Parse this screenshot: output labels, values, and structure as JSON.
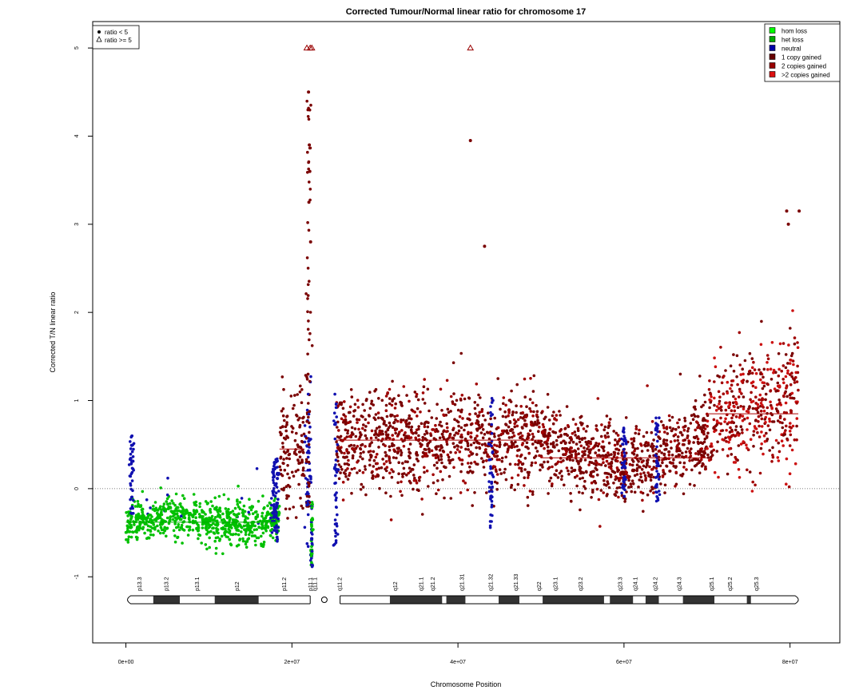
{
  "chart_data": {
    "type": "scatter",
    "title": "Corrected Tumour/Normal linear ratio for chromosome  17",
    "xlabel": "Chromosome Position",
    "ylabel": "Corrected T/N linear ratio",
    "xlim": [
      -4000000,
      86000000
    ],
    "ylim": [
      -1.75,
      5.3
    ],
    "x_ticks": [
      0,
      20000000,
      40000000,
      60000000,
      80000000
    ],
    "x_tick_labels": [
      "0e+00",
      "2e+07",
      "4e+07",
      "6e+07",
      "8e+07"
    ],
    "y_ticks": [
      -1,
      0,
      1,
      2,
      3,
      4,
      5
    ],
    "y_tick_labels": [
      "-1",
      "0",
      "1",
      "2",
      "3",
      "4",
      "5"
    ],
    "reference_line_y": 0,
    "legend_shape": {
      "position": "top-left",
      "entries": [
        {
          "symbol": "dot",
          "label": "ratio < 5"
        },
        {
          "symbol": "triangle",
          "label": "ratio >= 5"
        }
      ]
    },
    "legend_state": {
      "position": "top-right",
      "entries": [
        {
          "label": "hom loss",
          "color": "#00ff00"
        },
        {
          "label": "het loss",
          "color": "#00aa00"
        },
        {
          "label": "neutral",
          "color": "#0000aa"
        },
        {
          "label": "1 copy gained",
          "color": "#660000"
        },
        {
          "label": "2 copies gained",
          "color": "#990000"
        },
        {
          "label": ">2 copies gained",
          "color": "#dd1111"
        }
      ]
    },
    "point_colors": {
      "het_loss": "#00c000",
      "neutral": "#1010b0",
      "gain_1": "#7a0000",
      "gain_2": "#a00000",
      "gain_3": "#cc1111"
    },
    "segments": [
      {
        "start": 0,
        "end": 18500000,
        "state": "het loss",
        "mean": -0.38,
        "spread": 0.11
      },
      {
        "start": 18500000,
        "end": 21500000,
        "state": "1 copy gained",
        "mean": 0.45,
        "spread": 0.35
      },
      {
        "start": 21500000,
        "end": 22300000,
        "state": "neutral",
        "mean": 0.2,
        "spread": 0.5
      },
      {
        "start": 25300000,
        "end": 50000000,
        "state": "1 copy gained",
        "mean": 0.55,
        "spread": 0.28
      },
      {
        "start": 50000000,
        "end": 70000000,
        "state": "1 copy gained",
        "mean": 0.35,
        "spread": 0.22
      },
      {
        "start": 70000000,
        "end": 81000000,
        "state": "2 copies gained",
        "mean": 0.85,
        "spread": 0.35
      }
    ],
    "outliers_triangle": [
      {
        "x": 21800000,
        "y": 5
      },
      {
        "x": 22200000,
        "y": 5
      },
      {
        "x": 22400000,
        "y": 5
      },
      {
        "x": 41500000,
        "y": 5
      }
    ],
    "outliers_dot": [
      {
        "x": 22000000,
        "y": 4.5
      },
      {
        "x": 22100000,
        "y": 3.9
      },
      {
        "x": 22150000,
        "y": 3.6
      },
      {
        "x": 22050000,
        "y": 3.25
      },
      {
        "x": 22250000,
        "y": 2.8
      },
      {
        "x": 41500000,
        "y": 3.95
      },
      {
        "x": 43200000,
        "y": 2.75
      },
      {
        "x": 79600000,
        "y": 3.15
      },
      {
        "x": 79800000,
        "y": 3.0
      },
      {
        "x": 81100000,
        "y": 3.15
      }
    ],
    "ideogram": {
      "bands": [
        {
          "name": "p13.3",
          "start": 0,
          "end": 3300000,
          "stain": "white"
        },
        {
          "name": "p13.2",
          "start": 3300000,
          "end": 6500000,
          "stain": "dark"
        },
        {
          "name": "p13.1",
          "start": 6500000,
          "end": 10700000,
          "stain": "white"
        },
        {
          "name": "p12",
          "start": 10700000,
          "end": 16000000,
          "stain": "dark"
        },
        {
          "name": "p11.2",
          "start": 16000000,
          "end": 22200000,
          "stain": "white"
        },
        {
          "name": "p11.1",
          "start": 22200000,
          "end": 24000000,
          "stain": "centromere"
        },
        {
          "name": "q11.1",
          "start": 24000000,
          "end": 25800000,
          "stain": "centromere"
        },
        {
          "name": "q11.2",
          "start": 25800000,
          "end": 31800000,
          "stain": "white"
        },
        {
          "name": "q12",
          "start": 31800000,
          "end": 38100000,
          "stain": "dark"
        },
        {
          "name": "q21.1",
          "start": 38100000,
          "end": 38600000,
          "stain": "white"
        },
        {
          "name": "q21.2",
          "start": 38600000,
          "end": 40900000,
          "stain": "dark"
        },
        {
          "name": "q21.31",
          "start": 40900000,
          "end": 44900000,
          "stain": "white"
        },
        {
          "name": "q21.32",
          "start": 44900000,
          "end": 47400000,
          "stain": "dark"
        },
        {
          "name": "q21.33",
          "start": 47400000,
          "end": 50200000,
          "stain": "white"
        },
        {
          "name": "q22",
          "start": 50200000,
          "end": 57600000,
          "stain": "dark"
        },
        {
          "name": "q23.1",
          "start": 57600000,
          "end": 58300000,
          "stain": "white"
        },
        {
          "name": "q23.2",
          "start": 58300000,
          "end": 61100000,
          "stain": "dark"
        },
        {
          "name": "q23.3",
          "start": 61100000,
          "end": 62600000,
          "stain": "white"
        },
        {
          "name": "q24.1",
          "start": 62600000,
          "end": 64200000,
          "stain": "dark"
        },
        {
          "name": "q24.2",
          "start": 64200000,
          "end": 67100000,
          "stain": "white"
        },
        {
          "name": "q24.3",
          "start": 67100000,
          "end": 70900000,
          "stain": "dark"
        },
        {
          "name": "q25.1",
          "start": 70900000,
          "end": 74800000,
          "stain": "white"
        },
        {
          "name": "q25.2",
          "start": 74800000,
          "end": 75300000,
          "stain": "dark"
        },
        {
          "name": "q25.3",
          "start": 75300000,
          "end": 81195210,
          "stain": "white"
        }
      ],
      "label_positions": [
        {
          "name": "p13.3",
          "x": 1700000
        },
        {
          "name": "p13.2",
          "x": 4900000
        },
        {
          "name": "p13.1",
          "x": 8600000
        },
        {
          "name": "p12",
          "x": 13400000
        },
        {
          "name": "p11.2",
          "x": 19100000
        },
        {
          "name": "p11.1",
          "x": 22300000
        },
        {
          "name": "q11.1",
          "x": 22800000
        },
        {
          "name": "q11.2",
          "x": 25800000
        },
        {
          "name": "q12",
          "x": 32500000
        },
        {
          "name": "q21.1",
          "x": 35600000
        },
        {
          "name": "q21.2",
          "x": 37000000
        },
        {
          "name": "q21.31",
          "x": 40500000
        },
        {
          "name": "q21.32",
          "x": 44000000
        },
        {
          "name": "q21.33",
          "x": 47000000
        },
        {
          "name": "q22",
          "x": 49800000
        },
        {
          "name": "q23.1",
          "x": 51800000
        },
        {
          "name": "q23.2",
          "x": 54800000
        },
        {
          "name": "q23.3",
          "x": 59600000
        },
        {
          "name": "q24.1",
          "x": 61400000
        },
        {
          "name": "q24.2",
          "x": 63800000
        },
        {
          "name": "q24.3",
          "x": 66700000
        },
        {
          "name": "q25.1",
          "x": 70600000
        },
        {
          "name": "q25.2",
          "x": 72800000
        },
        {
          "name": "q25.3",
          "x": 76000000
        }
      ]
    }
  }
}
